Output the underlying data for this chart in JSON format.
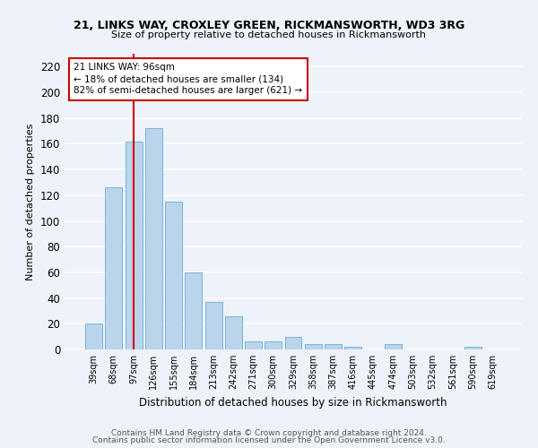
{
  "title_line1": "21, LINKS WAY, CROXLEY GREEN, RICKMANSWORTH, WD3 3RG",
  "title_line2": "Size of property relative to detached houses in Rickmansworth",
  "xlabel": "Distribution of detached houses by size in Rickmansworth",
  "ylabel": "Number of detached properties",
  "bar_color": "#bad4ec",
  "bar_edge_color": "#6aaed6",
  "categories": [
    "39sqm",
    "68sqm",
    "97sqm",
    "126sqm",
    "155sqm",
    "184sqm",
    "213sqm",
    "242sqm",
    "271sqm",
    "300sqm",
    "329sqm",
    "358sqm",
    "387sqm",
    "416sqm",
    "445sqm",
    "474sqm",
    "503sqm",
    "532sqm",
    "561sqm",
    "590sqm",
    "619sqm"
  ],
  "values": [
    20,
    126,
    162,
    172,
    115,
    60,
    37,
    26,
    6,
    6,
    10,
    4,
    4,
    2,
    0,
    4,
    0,
    0,
    0,
    2,
    0
  ],
  "ylim": [
    0,
    230
  ],
  "yticks": [
    0,
    20,
    40,
    60,
    80,
    100,
    120,
    140,
    160,
    180,
    200,
    220
  ],
  "annotation_text": "21 LINKS WAY: 96sqm\n← 18% of detached houses are smaller (134)\n82% of semi-detached houses are larger (621) →",
  "vline_x": 2.0,
  "annotation_box_color": "#ffffff",
  "annotation_box_edge": "#cc0000",
  "footer_line1": "Contains HM Land Registry data © Crown copyright and database right 2024.",
  "footer_line2": "Contains public sector information licensed under the Open Government Licence v3.0.",
  "background_color": "#eef2f9",
  "grid_color": "#ffffff"
}
